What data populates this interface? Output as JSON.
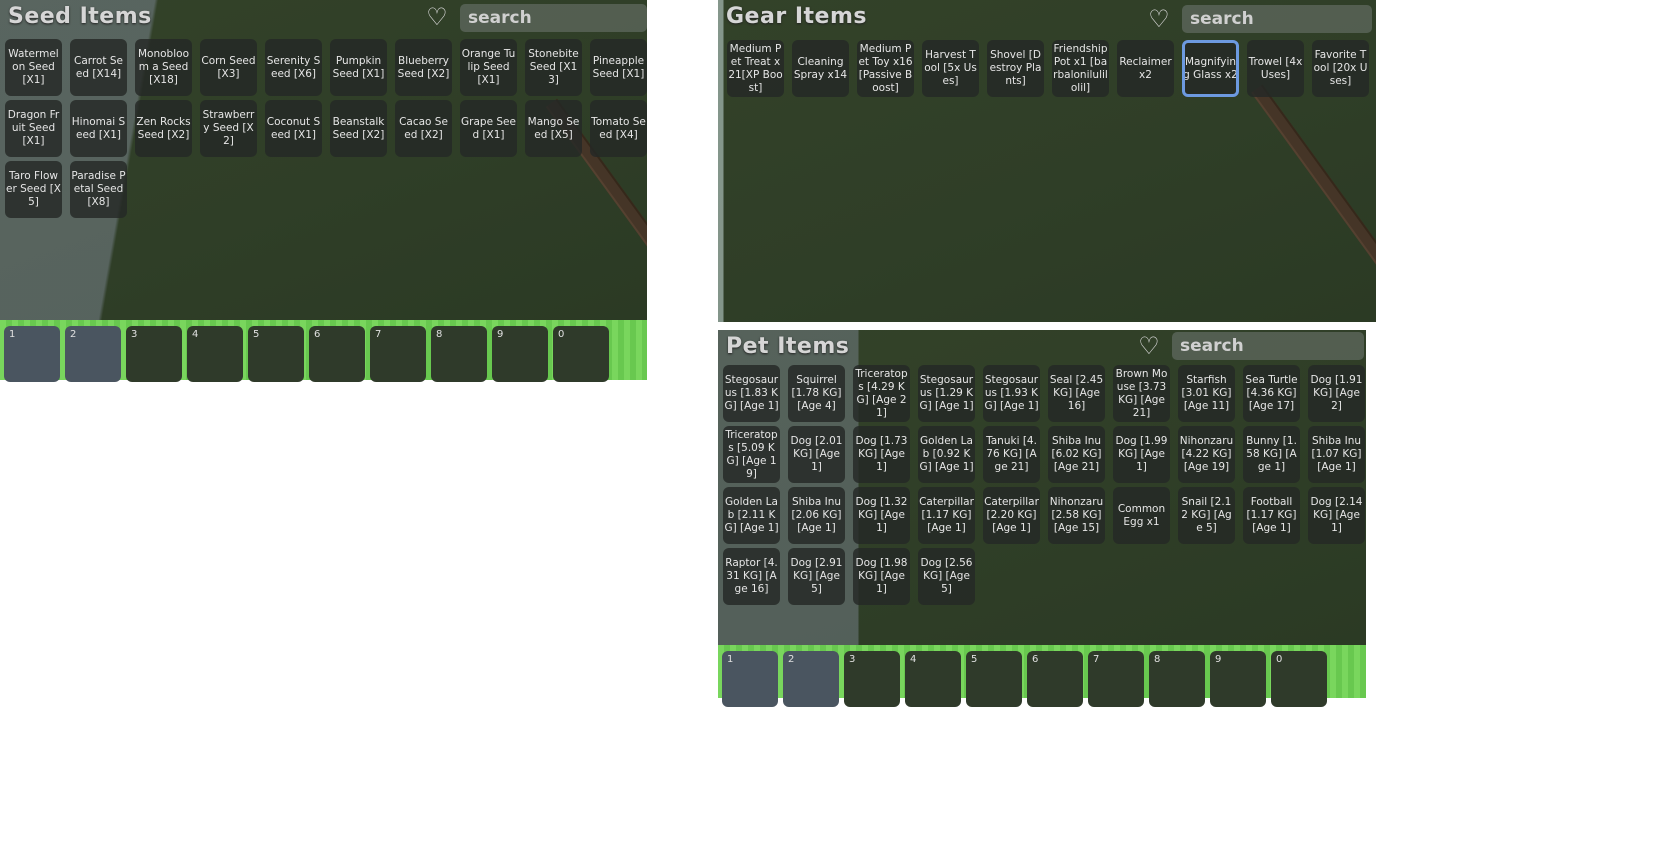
{
  "seed_panel": {
    "title": "Seed Items",
    "search_placeholder": "search",
    "items": [
      "Watermelon Seed [X1]",
      "Carrot Seed [X14]",
      "Monobloom a Seed [X18]",
      "Corn Seed [X3]",
      "Serenity Seed [X6]",
      "Pumpkin Seed [X1]",
      "Blueberry Seed [X2]",
      "Orange Tulip Seed [X1]",
      "Stonebite Seed [X13]",
      "Pineapple Seed [X1]",
      "Dragon Fruit Seed [X1]",
      "Hinomai Seed [X1]",
      "Zen Rocks Seed [X2]",
      "Strawberry Seed [X2]",
      "Coconut Seed [X1]",
      "Beanstalk Seed [X2]",
      "Cacao Seed [X2]",
      "Grape Seed [X1]",
      "Mango Seed [X5]",
      "Tomato Seed [X4]",
      "Taro Flower Seed [X5]",
      "Paradise Petal Seed [X8]"
    ]
  },
  "gear_panel": {
    "title": "Gear Items",
    "search_placeholder": "search",
    "selected_index": 7,
    "items": [
      "Medium Pet Treat x21[XP Boost]",
      "Cleaning Spray x14",
      "Medium Pet Toy x16[Passive Boost]",
      "Harvest Tool [5x Uses]",
      "Shovel [Destroy Plants]",
      "Friendship Pot x1 [barbalonilulilolil]",
      "Reclaimer x2",
      "Magnifying Glass x2",
      "Trowel [4x Uses]",
      "Favorite Tool [20x Uses]"
    ]
  },
  "pet_panel": {
    "title": "Pet Items",
    "search_placeholder": "search",
    "items": [
      "Stegosaurus [1.83 KG] [Age 1]",
      "Squirrel [1.78 KG] [Age 4]",
      "Triceratops [4.29 KG] [Age 21]",
      "Stegosaurus [1.29 KG] [Age 1]",
      "Stegosaurus [1.93 KG] [Age 1]",
      "Seal [2.45 KG] [Age 16]",
      "Brown Mouse [3.73 KG] [Age 21]",
      "Starfish [3.01 KG] [Age 11]",
      "Sea Turtle [4.36 KG] [Age 17]",
      "Dog [1.91 KG] [Age 2]",
      "Triceratops [5.09 KG] [Age 19]",
      "Dog [2.01 KG] [Age 1]",
      "Dog [1.73 KG] [Age 1]",
      "Golden Lab [0.92 KG] [Age 1]",
      "Tanuki [4.76 KG] [Age 21]",
      "Shiba Inu [6.02 KG] [Age 21]",
      "Dog [1.99 KG] [Age 1]",
      "Nihonzaru [4.22 KG] [Age 19]",
      "Bunny [1.58 KG] [Age 1]",
      "Shiba Inu [1.07 KG] [Age 1]",
      "Golden Lab [2.11 KG] [Age 1]",
      "Shiba Inu [2.06 KG] [Age 1]",
      "Dog [1.32 KG] [Age 1]",
      "Caterpillar [1.17 KG] [Age 1]",
      "Caterpillar [2.20 KG] [Age 1]",
      "Nihonzaru [2.58 KG] [Age 15]",
      "Common Egg x1",
      "Snail [2.12 KG] [Age 5]",
      "Football [1.17 KG] [Age 1]",
      "Dog [2.14 KG] [Age 1]",
      "Raptor [4.31 KG] [Age 16]",
      "Dog [2.91 KG] [Age 5]",
      "Dog [1.98 KG] [Age 1]",
      "Dog [2.56 KG] [Age 5]"
    ]
  },
  "hotbar_left": [
    "1",
    "2",
    "3",
    "4",
    "5",
    "6",
    "7",
    "8",
    "9",
    "0"
  ],
  "hotbar_right": [
    "1",
    "2",
    "3",
    "4",
    "5",
    "6",
    "7",
    "8",
    "9",
    "0"
  ]
}
